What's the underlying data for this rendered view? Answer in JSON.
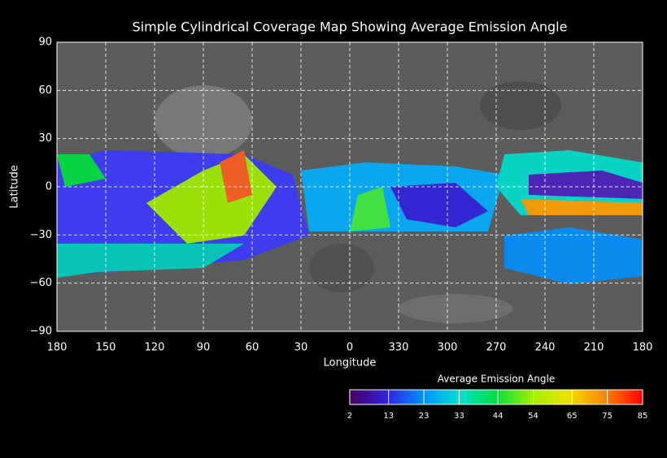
{
  "chart_data": {
    "type": "map",
    "title": "Simple Cylindrical Coverage Map Showing Average Emission Angle",
    "x_label": "Longitude",
    "y_label": "Latitude",
    "xlim": [
      180,
      -180
    ],
    "ylim": [
      -90,
      90
    ],
    "xticks": [
      180,
      150,
      120,
      90,
      60,
      30,
      0,
      {
        "value": -30,
        "label": "330"
      },
      {
        "value": -60,
        "label": "300"
      },
      {
        "value": -90,
        "label": "270"
      },
      {
        "value": -120,
        "label": "240"
      },
      {
        "value": -150,
        "label": "210"
      },
      {
        "value": -180,
        "label": "180"
      }
    ],
    "yticks": [
      90,
      60,
      30,
      0,
      {
        "value": -30,
        "label": "−30"
      },
      {
        "value": -60,
        "label": "−60"
      },
      {
        "value": -90,
        "label": "−90"
      }
    ],
    "grid": true,
    "colorbar": {
      "title": "Average Emission Angle",
      "lim": [
        2,
        85
      ],
      "ticks": [
        2,
        13,
        23,
        33,
        44,
        54,
        65,
        75,
        85
      ],
      "colors": [
        "#4b0060",
        "#3020e0",
        "#0090ff",
        "#00e0d0",
        "#00e040",
        "#a0f000",
        "#f0e000",
        "#ff8000",
        "#ff0000"
      ]
    }
  }
}
